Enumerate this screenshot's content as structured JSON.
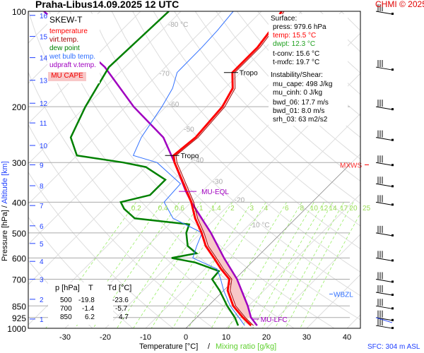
{
  "header": {
    "station": "Praha-Libus",
    "datetime": "14.09.2025 12 UTC",
    "credit": "CHMI © 2025"
  },
  "legend": {
    "title": "SKEW-T",
    "items": [
      {
        "label": "temperature",
        "color": "#ff0000"
      },
      {
        "label": "virt.temp.",
        "color": "#a00000"
      },
      {
        "label": "dew point",
        "color": "#008000"
      },
      {
        "label": "wet bulb temp.",
        "color": "#3070ff"
      },
      {
        "label": "udpraft v.temp.",
        "color": "#a000c0"
      }
    ],
    "cape_label": "MU CAPE"
  },
  "surface": {
    "heading": "Surface:",
    "press": "press: 979.6 hPa",
    "temp": "temp: 15.5 °C",
    "dwpt": "dwpt: 12.3 °C",
    "tconv": "t-conv: 15.6 °C",
    "tmxfc": "t-mxfc: 19.7 °C"
  },
  "instability": {
    "heading": "Instability/Shear:",
    "mu_cape": "mu_cape: 498 J/kg",
    "mu_cinh": "mu_cinh: 0 J/kg",
    "bwd_06": "bwd_06: 17.7 m/s",
    "bwd_01": "bwd_01: 8.0 m/s",
    "srh_03": "srh_03: 63 m2/s2"
  },
  "table": {
    "headers": [
      "p [hPa]",
      "T",
      "Td [°C]"
    ],
    "rows": [
      [
        "500",
        "-19.8",
        "-23.6"
      ],
      [
        "700",
        "-1.4",
        "-5.7"
      ],
      [
        "850",
        "6.2",
        "4.7"
      ]
    ]
  },
  "annotations": {
    "tropo": "Tropo",
    "mu_eql": "MU-EQL",
    "mu_lfc": "MU-LFC",
    "mxws": "MXWS",
    "wbzl": "WBZL",
    "sfc": "SFC: 304 m ASL"
  },
  "chart_data": {
    "type": "skew-t",
    "title": "Praha-Libus 14.09.2025 12 UTC",
    "xlabel": "Temperature [°C]",
    "xlabel2": "Mixing ratio [g/kg]",
    "ylabel": "Pressure [hPa]",
    "ylabel2": "Altitude [km]",
    "pressure_ticks": [
      100,
      200,
      300,
      400,
      500,
      600,
      700,
      850,
      925,
      1000
    ],
    "temp_ticks": [
      -30,
      -20,
      -10,
      0,
      10,
      20,
      30,
      40
    ],
    "altitude_ticks": [
      {
        "km": "1",
        "p": 935
      },
      {
        "km": "2",
        "p": 810
      },
      {
        "km": "3",
        "p": 700
      },
      {
        "km": "4",
        "p": 615
      },
      {
        "km": "5",
        "p": 540
      },
      {
        "km": "6",
        "p": 475
      },
      {
        "km": "7",
        "p": 410
      },
      {
        "km": "8",
        "p": 355
      },
      {
        "km": "9",
        "p": 305
      },
      {
        "km": "10",
        "p": 265
      },
      {
        "km": "11",
        "p": 225
      },
      {
        "km": "12",
        "p": 195
      },
      {
        "km": "13",
        "p": 165
      },
      {
        "km": "14",
        "p": 140
      },
      {
        "km": "15",
        "p": 120
      },
      {
        "km": "16",
        "p": 103
      }
    ],
    "isotherm_labels": [
      "-80 °C",
      "-70",
      "-60",
      "-50",
      "-40",
      "-30",
      "-20",
      "-10 °C"
    ],
    "mixing_ratio_labels": [
      "0.2",
      "0.4",
      "0.6",
      "1",
      "1.4",
      "2",
      "3",
      "4",
      "6",
      "8",
      "10",
      "12",
      "14",
      "17",
      "20",
      "25"
    ],
    "mixing_ratio_values": [
      0.2,
      0.4,
      0.6,
      1,
      1.4,
      2,
      3,
      4,
      6,
      8,
      10,
      12,
      14,
      17,
      20,
      25
    ],
    "temperature": [
      [
        980,
        15.5
      ],
      [
        925,
        11.5
      ],
      [
        850,
        6.2
      ],
      [
        760,
        1
      ],
      [
        700,
        -1.4
      ],
      [
        650,
        -6
      ],
      [
        600,
        -10.5
      ],
      [
        550,
        -15.5
      ],
      [
        500,
        -19.8
      ],
      [
        450,
        -25
      ],
      [
        400,
        -30
      ],
      [
        350,
        -36.5
      ],
      [
        300,
        -44
      ],
      [
        285,
        -46
      ],
      [
        250,
        -45
      ],
      [
        200,
        -46
      ],
      [
        175,
        -48
      ],
      [
        156,
        -52
      ],
      [
        130,
        -52
      ],
      [
        115,
        -53
      ],
      [
        100,
        -55
      ]
    ],
    "dewpoint": [
      [
        980,
        12.3
      ],
      [
        925,
        9.5
      ],
      [
        850,
        4.7
      ],
      [
        760,
        -1
      ],
      [
        700,
        -5.7
      ],
      [
        660,
        -6
      ],
      [
        620,
        -14
      ],
      [
        600,
        -21
      ],
      [
        580,
        -16
      ],
      [
        550,
        -20
      ],
      [
        500,
        -23.6
      ],
      [
        470,
        -25
      ],
      [
        450,
        -40
      ],
      [
        420,
        -45
      ],
      [
        400,
        -47.5
      ],
      [
        380,
        -42
      ],
      [
        340,
        -42
      ],
      [
        310,
        -50
      ],
      [
        300,
        -56.7
      ],
      [
        285,
        -70
      ],
      [
        250,
        -76
      ],
      [
        200,
        -80
      ],
      [
        150,
        -84
      ],
      [
        100,
        -83
      ]
    ],
    "parcel": [
      [
        980,
        17
      ],
      [
        925,
        13.5
      ],
      [
        850,
        9.8
      ],
      [
        700,
        0.5
      ],
      [
        600,
        -8
      ],
      [
        500,
        -17.5
      ],
      [
        400,
        -30
      ],
      [
        370,
        -34
      ],
      [
        300,
        -44
      ],
      [
        250,
        -53
      ],
      [
        200,
        -68
      ],
      [
        150,
        -85
      ],
      [
        100,
        -114
      ]
    ],
    "cape_range_hPa": [
      930,
      370
    ],
    "levels": {
      "tropo_hPa": [
        285,
        156
      ],
      "mu_eql_hPa": 370,
      "mu_lfc_hPa": 935,
      "mxws_hPa": 305,
      "wbzl_hPa": 780
    },
    "wind_levels_hPa": [
      980,
      925,
      850,
      770,
      700,
      600,
      500,
      400,
      350,
      300,
      250,
      200,
      150,
      100
    ]
  }
}
